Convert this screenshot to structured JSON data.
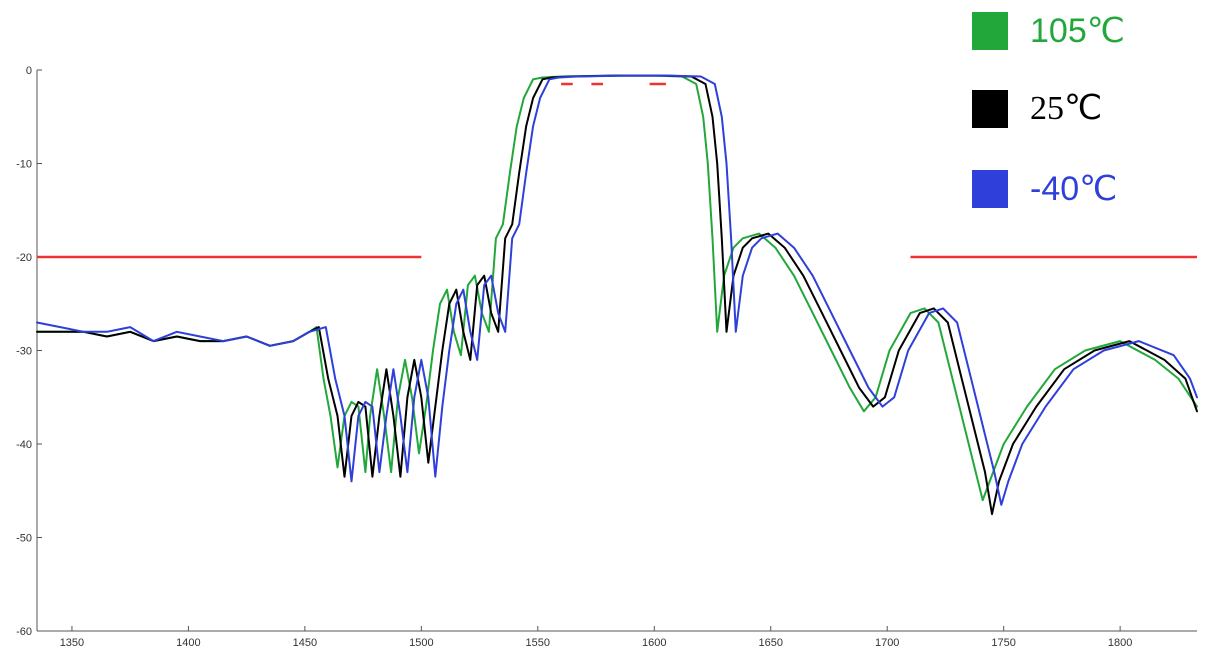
{
  "chart_data": {
    "type": "line",
    "title": "",
    "xlabel": "",
    "ylabel": "",
    "xlim": [
      1335,
      1833
    ],
    "ylim": [
      -60,
      0
    ],
    "x_ticks": [
      1350,
      1400,
      1450,
      1500,
      1550,
      1600,
      1650,
      1700,
      1750,
      1800
    ],
    "y_ticks": [
      0,
      -10,
      -20,
      -30,
      -40,
      -50,
      -60
    ],
    "grid": false,
    "legend_position": "top-right",
    "series": [
      {
        "name": "105℃",
        "color": "#22a83a",
        "x": [
          1335,
          1345,
          1355,
          1365,
          1375,
          1385,
          1395,
          1405,
          1415,
          1425,
          1435,
          1445,
          1452,
          1455,
          1458,
          1461,
          1464,
          1467,
          1470,
          1473,
          1476,
          1478,
          1481,
          1484,
          1487,
          1490,
          1493,
          1496,
          1499,
          1502,
          1505,
          1508,
          1511,
          1514,
          1517,
          1520,
          1523,
          1526,
          1529,
          1532,
          1535,
          1538,
          1541,
          1544,
          1548,
          1552,
          1560,
          1580,
          1600,
          1612,
          1618,
          1621,
          1623,
          1625,
          1627,
          1630,
          1634,
          1638,
          1645,
          1652,
          1660,
          1668,
          1676,
          1684,
          1690,
          1695,
          1701,
          1710,
          1716,
          1722,
          1728,
          1734,
          1738,
          1741,
          1744,
          1750,
          1760,
          1772,
          1785,
          1800,
          1815,
          1825,
          1833
        ],
        "y": [
          -28,
          -28,
          -28,
          -28.5,
          -28,
          -29,
          -28.5,
          -29,
          -29,
          -28.5,
          -29.5,
          -29,
          -28,
          -27.5,
          -33,
          -37,
          -42.5,
          -37,
          -35.5,
          -36,
          -43,
          -37,
          -32,
          -37,
          -43,
          -35,
          -31,
          -35,
          -41,
          -36,
          -30,
          -25,
          -23.5,
          -28,
          -30.5,
          -23,
          -22,
          -26,
          -28,
          -18,
          -16.5,
          -11,
          -6,
          -3,
          -1,
          -0.8,
          -0.7,
          -0.6,
          -0.6,
          -0.7,
          -1.5,
          -5,
          -10,
          -18,
          -28,
          -22,
          -19,
          -18,
          -17.5,
          -19,
          -22,
          -26,
          -30,
          -34,
          -36.5,
          -35,
          -30,
          -26,
          -25.5,
          -27,
          -33,
          -39,
          -43,
          -46,
          -44,
          -40,
          -36,
          -32,
          -30,
          -29,
          -31,
          -33,
          -36
        ]
      },
      {
        "name": "25℃",
        "color": "#000000",
        "x": [
          1335,
          1345,
          1355,
          1365,
          1375,
          1385,
          1395,
          1405,
          1415,
          1425,
          1435,
          1445,
          1452,
          1456,
          1460,
          1464,
          1467,
          1470,
          1473,
          1476,
          1479,
          1482,
          1485,
          1488,
          1491,
          1494,
          1497,
          1500,
          1503,
          1506,
          1509,
          1512,
          1515,
          1518,
          1521,
          1524,
          1527,
          1530,
          1533,
          1536,
          1539,
          1542,
          1545,
          1548,
          1552,
          1556,
          1564,
          1584,
          1604,
          1616,
          1622,
          1625,
          1627,
          1629,
          1631,
          1634,
          1638,
          1642,
          1649,
          1656,
          1664,
          1672,
          1680,
          1688,
          1694,
          1699,
          1705,
          1714,
          1720,
          1726,
          1732,
          1738,
          1742,
          1745,
          1748,
          1754,
          1764,
          1776,
          1789,
          1804,
          1819,
          1828,
          1833
        ],
        "y": [
          -28,
          -28,
          -28,
          -28.5,
          -28,
          -29,
          -28.5,
          -29,
          -29,
          -28.5,
          -29.5,
          -29,
          -28,
          -27.5,
          -33,
          -37,
          -43.5,
          -37,
          -35.5,
          -36,
          -43.5,
          -37,
          -32,
          -37,
          -43.5,
          -35,
          -31,
          -35,
          -42,
          -36,
          -30,
          -25,
          -23.5,
          -28,
          -31,
          -23,
          -22,
          -26,
          -28,
          -18,
          -16.5,
          -11,
          -6,
          -3,
          -1,
          -0.8,
          -0.7,
          -0.6,
          -0.6,
          -0.7,
          -1.5,
          -5,
          -10,
          -18,
          -28,
          -22,
          -19,
          -18,
          -17.5,
          -19,
          -22,
          -26,
          -30,
          -34,
          -36,
          -35,
          -30,
          -26,
          -25.5,
          -27,
          -33,
          -39,
          -43,
          -47.5,
          -44,
          -40,
          -36,
          -32,
          -30,
          -29,
          -31,
          -33,
          -36.5
        ]
      },
      {
        "name": "-40℃",
        "color": "#2f3fd9",
        "x": [
          1335,
          1345,
          1355,
          1365,
          1375,
          1385,
          1395,
          1405,
          1415,
          1425,
          1435,
          1445,
          1452,
          1459,
          1463,
          1467,
          1470,
          1473,
          1476,
          1479,
          1482,
          1485,
          1488,
          1491,
          1494,
          1497,
          1500,
          1503,
          1506,
          1509,
          1512,
          1515,
          1518,
          1521,
          1524,
          1527,
          1530,
          1533,
          1536,
          1539,
          1542,
          1545,
          1548,
          1551,
          1555,
          1559,
          1567,
          1587,
          1607,
          1620,
          1626,
          1629,
          1631,
          1633,
          1635,
          1638,
          1642,
          1646,
          1653,
          1660,
          1668,
          1676,
          1684,
          1692,
          1698,
          1703,
          1709,
          1718,
          1724,
          1730,
          1736,
          1742,
          1746,
          1749,
          1752,
          1758,
          1768,
          1780,
          1793,
          1808,
          1823,
          1830,
          1833
        ],
        "y": [
          -27,
          -27.5,
          -28,
          -28,
          -27.5,
          -29,
          -28,
          -28.5,
          -29,
          -28.5,
          -29.5,
          -29,
          -28,
          -27.5,
          -33,
          -37,
          -44,
          -37,
          -35.5,
          -36,
          -43,
          -37,
          -32,
          -37,
          -43,
          -35,
          -31,
          -35,
          -43.5,
          -36,
          -30,
          -25,
          -23.5,
          -28,
          -31,
          -23,
          -22,
          -26,
          -28,
          -18,
          -16.5,
          -11,
          -6,
          -3,
          -1,
          -0.8,
          -0.7,
          -0.6,
          -0.6,
          -0.7,
          -1.5,
          -5,
          -10,
          -18,
          -28,
          -22,
          -19,
          -18,
          -17.5,
          -19,
          -22,
          -26,
          -30,
          -34,
          -36,
          -35,
          -30,
          -26,
          -25.5,
          -27,
          -33,
          -39,
          -43,
          -46.5,
          -44,
          -40,
          -36,
          -32,
          -30,
          -29,
          -30.5,
          -33,
          -35
        ]
      }
    ],
    "spec_lines": [
      {
        "color": "#ee3333",
        "x": [
          1335,
          1500
        ],
        "y": [
          -20,
          -20
        ]
      },
      {
        "color": "#ee3333",
        "x": [
          1710,
          1833
        ],
        "y": [
          -20,
          -20
        ]
      },
      {
        "color": "#ee3333",
        "x": [
          1560,
          1565
        ],
        "y": [
          -1.5,
          -1.5
        ]
      },
      {
        "color": "#ee3333",
        "x": [
          1573,
          1578
        ],
        "y": [
          -1.5,
          -1.5
        ]
      },
      {
        "color": "#ee3333",
        "x": [
          1598,
          1605
        ],
        "y": [
          -1.5,
          -1.5
        ]
      }
    ]
  }
}
